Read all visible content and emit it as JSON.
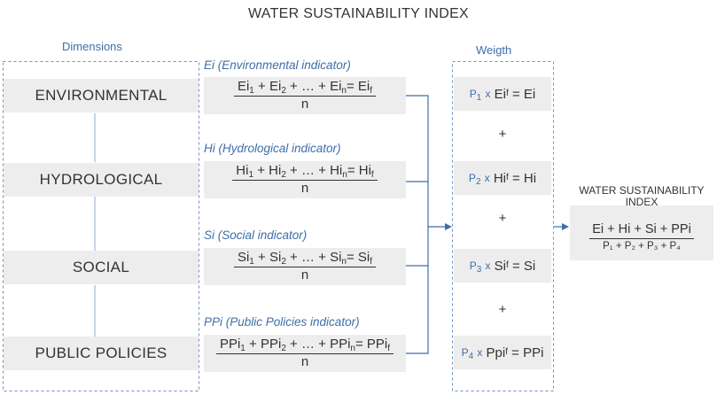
{
  "title": "WATER SUSTAINABILITY INDEX",
  "dimensions_label": "Dimensions",
  "weight_label": "Weigth",
  "dimensions": [
    {
      "name": "ENVIRONMENTAL"
    },
    {
      "name": "HYDROLOGICAL"
    },
    {
      "name": "SOCIAL"
    },
    {
      "name": "PUBLIC POLICIES"
    }
  ],
  "indicators": [
    {
      "label": "Ei (Environmental indicator)",
      "sym": "Ei",
      "num_a": "Ei",
      "num_b": "Ei",
      "num_c": "Ei",
      "res": "Ei",
      "den": "n"
    },
    {
      "label": "Hi (Hydrological indicator)",
      "sym": "Hi",
      "num_a": "Hi",
      "num_b": "Hi",
      "num_c": "Hi",
      "res": "Hi",
      "den": "n"
    },
    {
      "label": "Si (Social indicator)",
      "sym": "Si",
      "num_a": "Si",
      "num_b": "Si",
      "num_c": "Si",
      "res": "Si",
      "den": "n"
    },
    {
      "label": "PPi (Public Policies indicator)",
      "sym": "PPi",
      "num_a": "PPi",
      "num_b": "PPi",
      "num_c": "PPi",
      "res": "PPi",
      "den": "n"
    }
  ],
  "weights": [
    {
      "p": "P",
      "pi": "1",
      "lhs": "Ei",
      "rhs": "Ei"
    },
    {
      "p": "P",
      "pi": "2",
      "lhs": "Hi",
      "rhs": "Hi"
    },
    {
      "p": "P",
      "pi": "3",
      "lhs": "Si",
      "rhs": "Si"
    },
    {
      "p": "P",
      "pi": "4",
      "lhs": "Ppi",
      "rhs": "PPi"
    }
  ],
  "plus": "+",
  "final": {
    "title": "WATER SUSTAINABILITY INDEX",
    "numerator": "Ei + Hi + Si + PPi",
    "denominator": "P₁ + P₂ + P₃ + P₄"
  },
  "colors": {
    "accent": "#3f6ea8",
    "box": "#ededed",
    "dash": "#6f93c0"
  }
}
